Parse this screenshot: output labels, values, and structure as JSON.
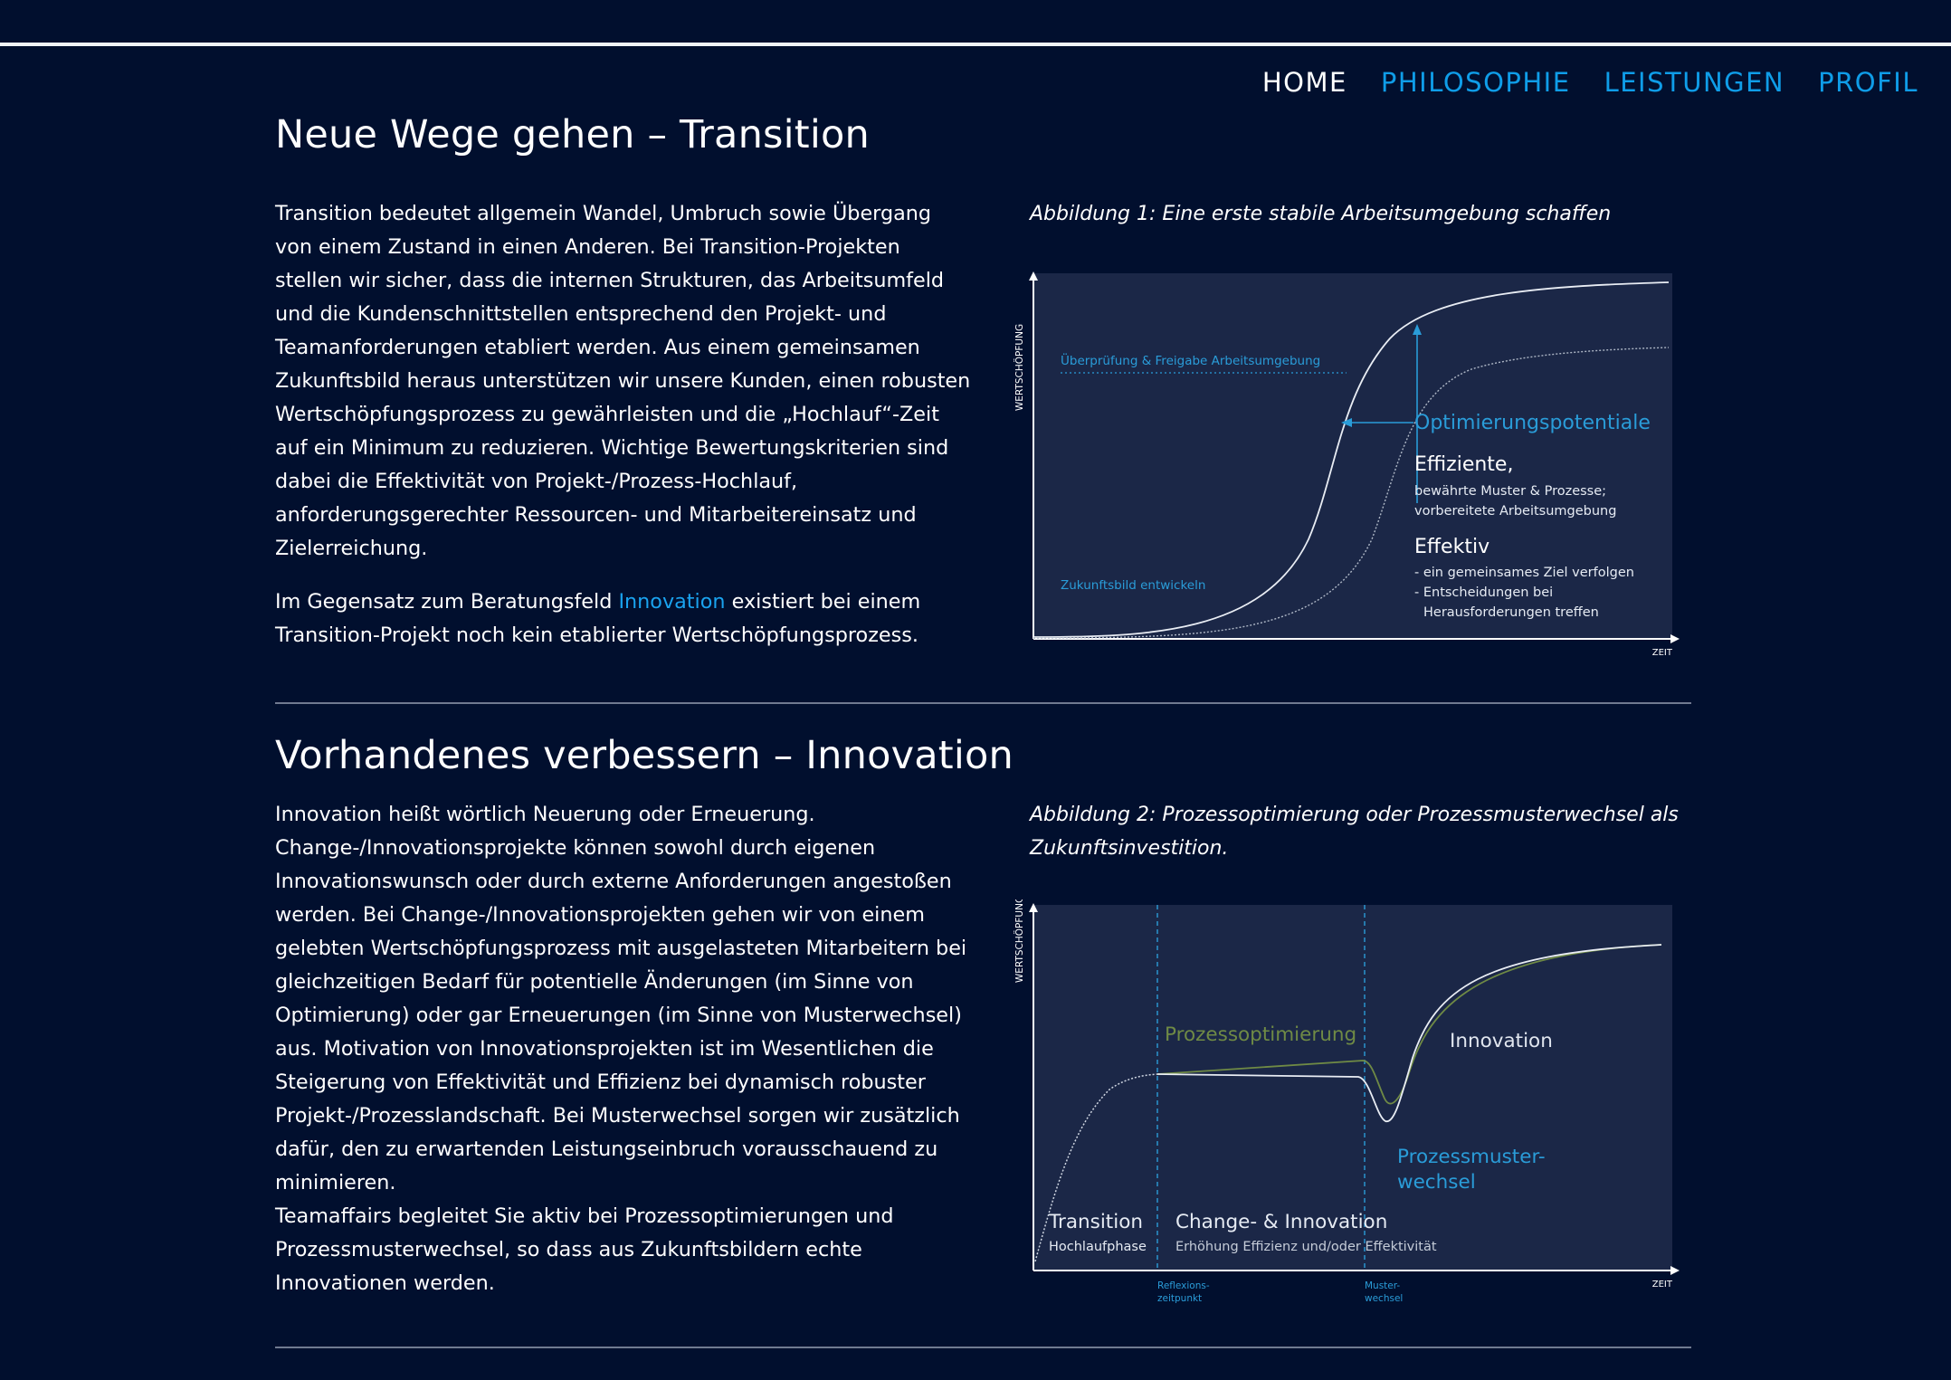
{
  "nav": {
    "items": [
      {
        "label": "HOME",
        "active": true
      },
      {
        "label": "PHILOSOPHIE",
        "active": false
      },
      {
        "label": "LEISTUNGEN",
        "active": false
      },
      {
        "label": "PROFIL",
        "active": false
      }
    ]
  },
  "section1": {
    "title": "Neue Wege gehen – Transition",
    "paragraph1": "Transition bedeutet allgemein Wandel, Umbruch sowie Übergang von einem Zustand in einen Anderen. Bei Transition-Projekten stellen wir sicher, dass die internen Strukturen, das Arbeitsumfeld und die Kundenschnittstellen entsprechend den Projekt- und Teamanforderungen etabliert werden. Aus einem gemeinsamen Zukunftsbild heraus unterstützen wir unsere Kunden, einen robusten Wertschöpfungsprozess zu gewährleisten und die „Hochlauf“-Zeit auf ein Minimum zu reduzieren. Wichtige Bewertungskriterien sind dabei die Effektivität von Projekt-/Prozess-Hochlauf, anforderungsgerechter Ressourcen- und Mitarbeitereinsatz und Zielerreichung.",
    "paragraph2_before": "Im Gegensatz zum Beratungsfeld ",
    "paragraph2_link": "Innovation",
    "paragraph2_after": " existiert bei einem Transition-Projekt noch kein etablierter Wertschöpfungsprozess.",
    "caption": "Abbildung 1: Eine erste stabile Arbeitsumgebung schaffen",
    "figure": {
      "y_axis_label": "WERTSCHÖPFUNG",
      "x_axis_label": "ZEIT",
      "label_review": "Überprüfung & Freigabe Arbeitsumgebung",
      "label_future": "Zukunftsbild entwickeln",
      "label_potential": "Optimierungspotentiale",
      "label_efficient": "Effiziente,",
      "efficient_line1": "bewährte Muster & Prozesse;",
      "efficient_line2": "vorbereitete Arbeitsumgebung",
      "label_effective": "Effektiv",
      "effective_line1": "- ein gemeinsames Ziel verfolgen",
      "effective_line2": "- Entscheidungen bei",
      "effective_line3": "Herausforderungen treffen"
    }
  },
  "section2": {
    "title": "Vorhandenes verbessern – Innovation",
    "paragraph1": "Innovation heißt wörtlich Neuerung oder Erneuerung. Change-/Innovationsprojekte können sowohl durch eigenen Innovationswunsch oder durch externe Anforderungen angestoßen werden. Bei Change-/Innovationsprojekten gehen wir von einem gelebten Wertschöpfungsprozess mit ausgelasteten Mitarbeitern bei gleichzeitigen Bedarf für potentielle Änderungen (im Sinne von Optimierung) oder gar Erneuerungen (im Sinne von Musterwechsel) aus. Motivation von Innovationsprojekten ist im Wesentlichen die Steigerung von Effektivität und Effizienz bei dynamisch robuster Projekt-/Prozesslandschaft. Bei Musterwechsel sorgen wir zusätzlich dafür, den zu erwartenden Leistungseinbruch vorausschauend zu minimieren.",
    "paragraph2": "Teamaffairs begleitet Sie aktiv bei Prozessoptimierungen und Prozessmusterwechsel, so dass aus Zukunftsbildern echte Innovationen werden.",
    "caption": "Abbildung 2: Prozessoptimierung oder Prozessmusterwechsel als Zukunftsinvestition.",
    "figure": {
      "y_axis_label": "WERTSCHÖPFUNG",
      "x_axis_label": "ZEIT",
      "label_optimization": "Prozessoptimierung",
      "label_innovation": "Innovation",
      "label_pattern_change_1": "Prozessmuster-",
      "label_pattern_change_2": "wechsel",
      "label_transition": "Transition",
      "label_ramp_up": "Hochlaufphase",
      "label_change": "Change- & Innovation",
      "label_change_sub": "Erhöhung Effizienz und/oder Effektivität",
      "label_reflection_1": "Reflexions-",
      "label_reflection_2": "zeitpunkt",
      "label_switch_1": "Muster-",
      "label_switch_2": "wechsel"
    }
  },
  "colors": {
    "background": "#010f2e",
    "accent": "#0f9de8",
    "figure_background": "#1b2747",
    "optimization_green": "#6f8a45"
  }
}
